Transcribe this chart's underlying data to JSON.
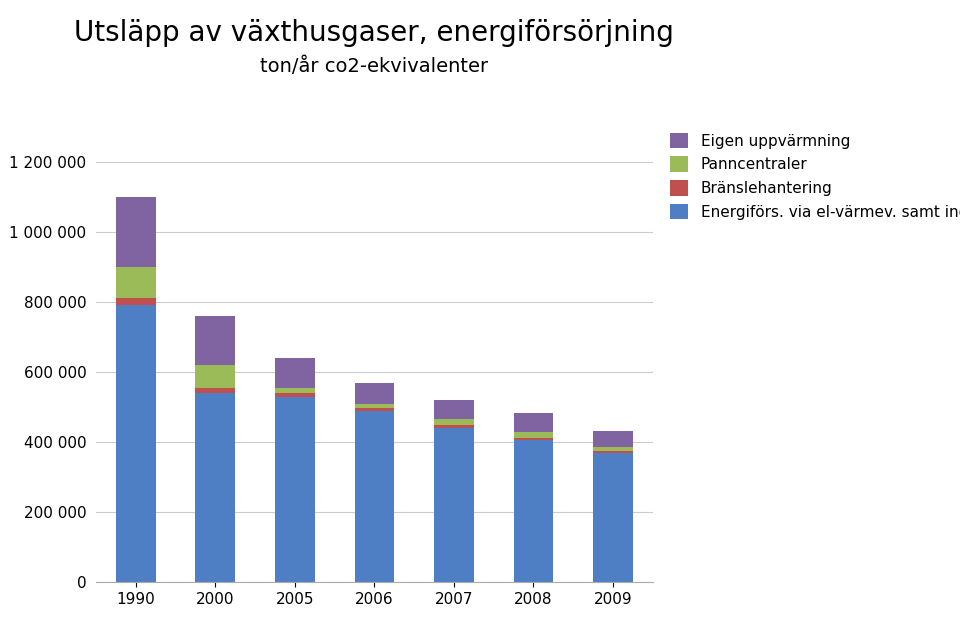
{
  "title": "Utsläpp av växthusgaser, energiförsörjning",
  "subtitle": "ton/år co2-ekvivalenter",
  "categories": [
    "1990",
    "2000",
    "2005",
    "2006",
    "2007",
    "2008",
    "2009"
  ],
  "series": {
    "Energiförs. via el-värmev. samt ind.": [
      790000,
      540000,
      530000,
      490000,
      440000,
      405000,
      370000
    ],
    "Bränslehantering": [
      20000,
      15000,
      10000,
      8000,
      10000,
      8000,
      5000
    ],
    "Panncentraler": [
      90000,
      65000,
      15000,
      12000,
      15000,
      15000,
      12000
    ],
    "Eigen uppvärmning": [
      200000,
      140000,
      85000,
      60000,
      55000,
      55000,
      45000
    ]
  },
  "colors": {
    "Energiförs. via el-värmev. samt ind.": "#4e7fc4",
    "Bränslehantering": "#c0504d",
    "Panncentraler": "#9bbb59",
    "Eigen uppvärmning": "#8064a2"
  },
  "legend_labels": {
    "Energiförs. via el-värmev. samt ind.": "Energiförs. via el-värmev. samt ind.",
    "Bränslehantering": "Bränslehantering",
    "Panncentraler": "Panncentraler",
    "Eigen uppvärmning": "Eigen uppvärmning"
  },
  "ylim": [
    0,
    1300000
  ],
  "yticks": [
    0,
    200000,
    400000,
    600000,
    800000,
    1000000,
    1200000
  ],
  "background_color": "#ffffff",
  "title_fontsize": 20,
  "subtitle_fontsize": 14,
  "legend_fontsize": 11,
  "tick_fontsize": 11,
  "bar_width": 0.5
}
